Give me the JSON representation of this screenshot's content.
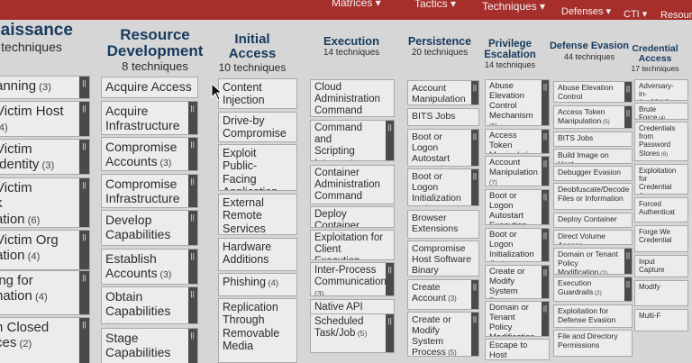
{
  "topnav": [
    "Matrices ▾",
    "Tactics ▾",
    "Techniques ▾",
    "Defenses ▾",
    "CTI ▾",
    "Resources"
  ],
  "handle_glyph": "||",
  "tactics": [
    {
      "name": "naissance",
      "count": "techniques",
      "cells": [
        [
          "anning",
          "(3)"
        ],
        [
          "Victim Host",
          "(4)"
        ],
        [
          "Victim Identity",
          "(3)"
        ],
        [
          "Victim\nk\nation",
          "(6)"
        ],
        [
          "Victim Org\nation",
          "(4)"
        ],
        [
          "ing for\nnation",
          "(4)"
        ],
        [
          "h Closed\nces",
          "(2)"
        ]
      ]
    },
    {
      "name": "Resource Development",
      "count": "8 techniques",
      "cells": [
        [
          "Acquire Access",
          ""
        ],
        [
          "Acquire\nInfrastructure",
          "(8)"
        ],
        [
          "Compromise\nAccounts",
          "(3)"
        ],
        [
          "Compromise\nInfrastructure",
          "(8)"
        ],
        [
          "Develop\nCapabilities",
          "(4)"
        ],
        [
          "Establish\nAccounts",
          "(3)"
        ],
        [
          "Obtain\nCapabilities",
          "(7)"
        ],
        [
          "Stage\nCapabilities",
          "(6)"
        ]
      ]
    },
    {
      "name": "Initial Access",
      "count": "10 techniques",
      "cells": [
        [
          "Content\nInjection",
          ""
        ],
        [
          "Drive-by\nCompromise",
          ""
        ],
        [
          "Exploit Public-\nFacing\nApplication",
          ""
        ],
        [
          "External\nRemote\nServices",
          ""
        ],
        [
          "Hardware\nAdditions",
          ""
        ],
        [
          "Phishing",
          "(4)"
        ],
        [
          "Replication\nThrough\nRemovable\nMedia",
          ""
        ]
      ]
    },
    {
      "name": "Execution",
      "count": "14 techniques",
      "cells": [
        [
          "Cloud\nAdministration\nCommand",
          ""
        ],
        [
          "Command and\nScripting\nInterpreter",
          "(11)"
        ],
        [
          "Container\nAdministration\nCommand",
          ""
        ],
        [
          "Deploy Container",
          ""
        ],
        [
          "Exploitation for\nClient Execution",
          ""
        ],
        [
          "Inter-Process\nCommunication",
          "(3)"
        ],
        [
          "Native API",
          ""
        ],
        [
          "Scheduled\nTask/Job",
          "(5)"
        ]
      ]
    },
    {
      "name": "Persistence",
      "count": "20 techniques",
      "cells": [
        [
          "Account\nManipulation",
          "(7)"
        ],
        [
          "BITS Jobs",
          ""
        ],
        [
          "Boot or Logon\nAutostart\nExecution",
          "(14)"
        ],
        [
          "Boot or Logon\nInitialization\nScripts",
          "(5)"
        ],
        [
          "Browser\nExtensions",
          ""
        ],
        [
          "Compromise\nHost Software\nBinary",
          ""
        ],
        [
          "Create\nAccount",
          "(3)"
        ],
        [
          "Create or\nModify System\nProcess",
          "(5)"
        ]
      ]
    },
    {
      "name": "Privilege Escalation",
      "count": "14 techniques",
      "cells": [
        [
          "Abuse\nElevation\nControl\nMechanism",
          "(6)"
        ],
        [
          "Access Token\nManipulation",
          "(5)"
        ],
        [
          "Account\nManipulation",
          "(7)"
        ],
        [
          "Boot or Logon\nAutostart\nExecution",
          "(14)"
        ],
        [
          "Boot or Logon\nInitialization\nScripts",
          "(5)"
        ],
        [
          "Create or\nModify System\nProcess",
          "(5)"
        ],
        [
          "Domain or\nTenant Policy\nModification",
          "(2)"
        ],
        [
          "Escape to Host",
          ""
        ]
      ]
    },
    {
      "name": "Defense Evasion",
      "count": "44 techniques",
      "cells": [
        [
          "Abuse Elevation\nControl Mechanism",
          "(6)"
        ],
        [
          "Access Token\nManipulation",
          "(5)"
        ],
        [
          "BITS Jobs",
          ""
        ],
        [
          "Build Image on Host",
          ""
        ],
        [
          "Debugger Evasion",
          ""
        ],
        [
          "Deobfuscate/Decode\nFiles or Information",
          ""
        ],
        [
          "Deploy Container",
          ""
        ],
        [
          "Direct Volume Access",
          ""
        ],
        [
          "Domain or Tenant\nPolicy Modification",
          "(2)"
        ],
        [
          "Execution\nGuardrails",
          "(2)"
        ],
        [
          "Exploitation for\nDefense Evasion",
          ""
        ],
        [
          "File and Directory\nPermissions",
          ""
        ]
      ]
    },
    {
      "name": "Credential Access",
      "count": "17 techniques",
      "cells": [
        [
          "Adversary-in-\nthe-Middle",
          "(4)"
        ],
        [
          "Brute Force",
          "(4)"
        ],
        [
          "Credentials\nfrom\nPassword\nStores",
          "(6)"
        ],
        [
          "Exploitation\nfor Credential\nAccess",
          ""
        ],
        [
          "Forced\nAuthenticat",
          ""
        ],
        [
          "Forge We\nCredential",
          ""
        ],
        [
          "Input\nCapture",
          ""
        ],
        [
          "Modify",
          ""
        ],
        [
          "Multi-F",
          ""
        ]
      ]
    }
  ]
}
